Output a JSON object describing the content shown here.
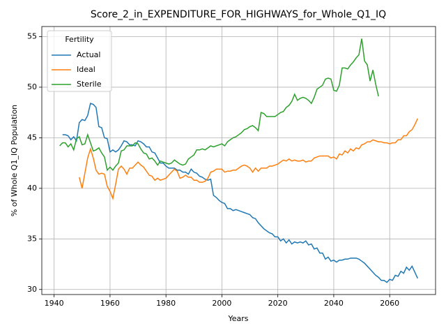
{
  "chart_data": {
    "type": "line",
    "title": "Score_2_in_EXPENDITURE_FOR_HIGHWAYS_for_Whole_Q1_IQ",
    "x_label": "Years",
    "y_label": "% of Whole Q1_IQ Population",
    "legend_title": "Fertility",
    "legend_position": "upper left",
    "grid": true,
    "xlim": [
      1935.6,
      2076.4
    ],
    "ylim": [
      29.5,
      56.0
    ],
    "xticks": [
      1940,
      1960,
      1980,
      2000,
      2020,
      2040,
      2060
    ],
    "yticks": [
      30,
      35,
      40,
      45,
      50,
      55
    ],
    "x": [
      1942,
      1943,
      1944,
      1945,
      1946,
      1947,
      1948,
      1949,
      1950,
      1951,
      1952,
      1953,
      1954,
      1955,
      1956,
      1957,
      1958,
      1959,
      1960,
      1961,
      1962,
      1963,
      1964,
      1965,
      1966,
      1967,
      1968,
      1969,
      1970,
      1971,
      1972,
      1973,
      1974,
      1975,
      1976,
      1977,
      1978,
      1979,
      1980,
      1981,
      1982,
      1983,
      1984,
      1985,
      1986,
      1987,
      1988,
      1989,
      1990,
      1991,
      1992,
      1993,
      1994,
      1995,
      1996,
      1997,
      1998,
      1999,
      2000,
      2001,
      2002,
      2003,
      2004,
      2005,
      2006,
      2007,
      2008,
      2009,
      2010,
      2011,
      2012,
      2013,
      2014,
      2015,
      2016,
      2017,
      2018,
      2019,
      2020,
      2021,
      2022,
      2023,
      2024,
      2025,
      2026,
      2027,
      2028,
      2029,
      2030,
      2031,
      2032,
      2033,
      2034,
      2035,
      2036,
      2037,
      2038,
      2039,
      2040,
      2041,
      2042,
      2043,
      2044,
      2045,
      2046,
      2047,
      2048,
      2049,
      2050,
      2051,
      2052,
      2053,
      2054,
      2055,
      2056,
      2057,
      2058,
      2059,
      2060,
      2061,
      2062,
      2063,
      2064,
      2065,
      2066,
      2067,
      2068,
      2069,
      2070
    ],
    "series": [
      {
        "name": "Actual",
        "color": "#1f77b4",
        "values": [
          null,
          45.3,
          45.3,
          45.2,
          44.8,
          45.1,
          44.7,
          46.5,
          46.8,
          46.7,
          47.2,
          48.4,
          48.3,
          48.0,
          46.1,
          46.0,
          45.0,
          44.9,
          43.6,
          43.8,
          43.6,
          43.8,
          44.2,
          44.7,
          44.6,
          44.3,
          44.3,
          44.2,
          44.7,
          44.6,
          44.4,
          44.1,
          44.1,
          43.6,
          43.5,
          43.0,
          42.5,
          42.5,
          42.2,
          42.0,
          42.0,
          42.0,
          41.8,
          41.8,
          41.6,
          41.6,
          41.4,
          41.9,
          41.6,
          41.5,
          41.2,
          41.1,
          40.9,
          40.8,
          40.9,
          39.3,
          39.1,
          38.8,
          38.6,
          38.5,
          38.0,
          38.0,
          37.8,
          37.9,
          37.8,
          37.7,
          37.6,
          37.5,
          37.4,
          37.1,
          37.0,
          36.6,
          36.3,
          36.0,
          35.8,
          35.6,
          35.5,
          35.2,
          35.2,
          34.8,
          35.0,
          34.6,
          34.9,
          34.5,
          34.7,
          34.6,
          34.7,
          34.6,
          34.8,
          34.4,
          34.5,
          34.0,
          34.1,
          33.6,
          33.6,
          33.0,
          33.2,
          32.8,
          32.9,
          32.7,
          32.9,
          32.9,
          33.0,
          33.0,
          33.1,
          33.1,
          33.1,
          33.0,
          32.8,
          32.6,
          32.3,
          32.0,
          31.7,
          31.4,
          31.2,
          30.9,
          30.9,
          30.7,
          31.0,
          30.9,
          31.4,
          31.3,
          31.8,
          31.6,
          32.2,
          31.9,
          32.3,
          31.7,
          31.1
        ]
      },
      {
        "name": "Ideal",
        "color": "#ff7f0e",
        "values": [
          null,
          null,
          null,
          null,
          null,
          null,
          null,
          41.1,
          40.0,
          41.5,
          43.0,
          43.9,
          43.0,
          41.8,
          41.4,
          41.5,
          41.4,
          40.2,
          39.7,
          39.0,
          40.4,
          41.9,
          42.2,
          41.9,
          41.4,
          42.0,
          42.0,
          42.3,
          42.6,
          42.3,
          42.1,
          41.7,
          41.3,
          41.2,
          40.8,
          41.0,
          40.8,
          40.9,
          41.0,
          41.3,
          41.6,
          41.9,
          41.7,
          41.0,
          41.1,
          41.3,
          41.1,
          41.1,
          40.8,
          40.8,
          40.6,
          40.6,
          40.7,
          41.0,
          41.6,
          41.7,
          41.9,
          41.9,
          41.9,
          41.6,
          41.7,
          41.7,
          41.8,
          41.8,
          42.0,
          42.2,
          42.3,
          42.2,
          42.0,
          41.6,
          42.0,
          41.7,
          42.0,
          42.0,
          42.0,
          42.2,
          42.2,
          42.3,
          42.4,
          42.6,
          42.8,
          42.7,
          42.9,
          42.7,
          42.8,
          42.7,
          42.7,
          42.8,
          42.6,
          42.7,
          42.7,
          43.0,
          43.1,
          43.2,
          43.2,
          43.2,
          43.2,
          43.0,
          43.1,
          42.9,
          43.4,
          43.3,
          43.7,
          43.5,
          43.9,
          43.7,
          44.0,
          43.9,
          44.3,
          44.4,
          44.6,
          44.6,
          44.8,
          44.7,
          44.6,
          44.6,
          44.5,
          44.5,
          44.4,
          44.5,
          44.5,
          44.8,
          44.8,
          45.2,
          45.2,
          45.6,
          45.8,
          46.3,
          46.9
        ]
      },
      {
        "name": "Sterile",
        "color": "#2ca02c",
        "values": [
          44.2,
          44.5,
          44.5,
          44.1,
          44.4,
          43.8,
          44.9,
          45.1,
          44.3,
          44.4,
          45.3,
          44.5,
          43.7,
          43.8,
          44.0,
          43.5,
          43.1,
          41.8,
          42.1,
          41.8,
          42.2,
          42.5,
          43.7,
          43.8,
          44.2,
          44.2,
          44.2,
          44.5,
          44.4,
          43.9,
          43.5,
          43.4,
          42.9,
          43.0,
          42.7,
          42.3,
          42.7,
          42.6,
          42.5,
          42.4,
          42.5,
          42.8,
          42.6,
          42.4,
          42.3,
          42.4,
          42.9,
          43.1,
          43.3,
          43.8,
          43.8,
          43.9,
          43.8,
          44.0,
          44.2,
          44.1,
          44.2,
          44.3,
          44.4,
          44.2,
          44.6,
          44.8,
          45.0,
          45.1,
          45.3,
          45.5,
          45.8,
          45.9,
          46.1,
          46.2,
          46.0,
          45.7,
          47.5,
          47.4,
          47.1,
          47.1,
          47.1,
          47.1,
          47.3,
          47.5,
          47.6,
          48.0,
          48.2,
          48.6,
          49.3,
          48.7,
          48.9,
          49.0,
          48.9,
          48.7,
          48.4,
          49.0,
          49.8,
          50.0,
          50.2,
          50.8,
          50.9,
          50.8,
          49.7,
          49.6,
          50.2,
          51.9,
          51.9,
          51.8,
          52.2,
          52.5,
          52.9,
          53.2,
          54.8,
          52.6,
          52.2,
          50.6,
          51.7,
          50.3,
          49.1,
          null,
          null,
          null,
          null,
          null,
          null,
          null,
          null,
          null,
          null,
          null,
          null,
          null,
          null
        ]
      }
    ]
  }
}
